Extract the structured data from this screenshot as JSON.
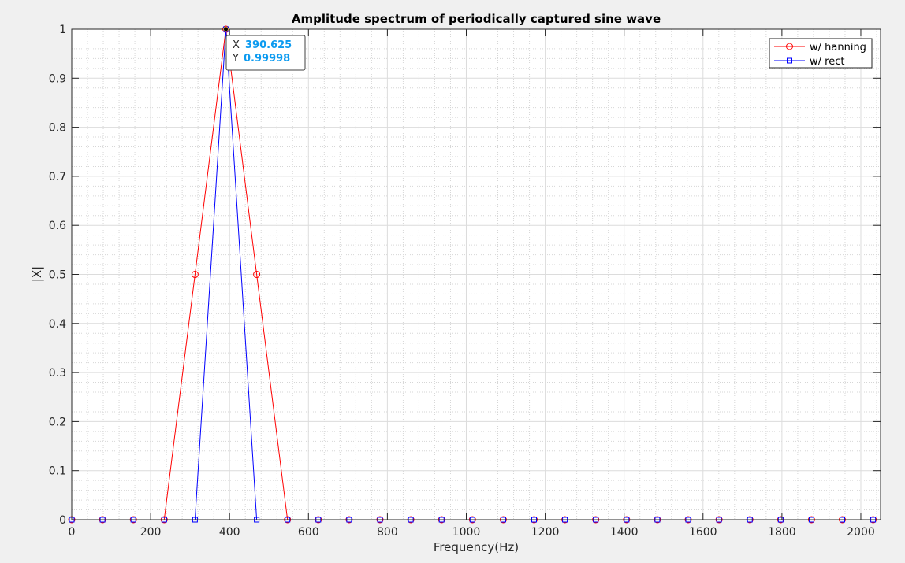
{
  "chart_data": {
    "type": "line",
    "title": "Amplitude spectrum of periodically captured sine wave",
    "xlabel": "Frequency(Hz)",
    "ylabel": "|X|",
    "xlim": [
      0,
      2050
    ],
    "ylim": [
      0,
      1
    ],
    "xticks": [
      0,
      200,
      400,
      600,
      800,
      1000,
      1200,
      1400,
      1600,
      1800,
      2000
    ],
    "yticks": [
      0,
      0.1,
      0.2,
      0.3,
      0.4,
      0.5,
      0.6,
      0.7,
      0.8,
      0.9,
      1
    ],
    "xtick_labels": [
      "0",
      "200",
      "400",
      "600",
      "800",
      "1000",
      "1200",
      "1400",
      "1600",
      "1800",
      "2000"
    ],
    "ytick_labels": [
      "0",
      "0.1",
      "0.2",
      "0.3",
      "0.4",
      "0.5",
      "0.6",
      "0.7",
      "0.8",
      "0.9",
      "1"
    ],
    "grid": true,
    "minor_grid": true,
    "legend_position": "top-right",
    "x": [
      0,
      78.125,
      156.25,
      234.375,
      312.5,
      390.625,
      468.75,
      546.875,
      625,
      703.125,
      781.25,
      859.375,
      937.5,
      1015.625,
      1093.75,
      1171.875,
      1250,
      1328.125,
      1406.25,
      1484.375,
      1562.5,
      1640.625,
      1718.75,
      1796.875,
      1875,
      1953.125,
      2031.25
    ],
    "series": [
      {
        "name": "w/ hanning",
        "color": "#ff0000",
        "marker": "circle",
        "values": [
          0,
          0,
          0,
          0,
          0.49999,
          0.99998,
          0.49999,
          0,
          0,
          0,
          0,
          0,
          0,
          0,
          0,
          0,
          0,
          0,
          0,
          0,
          0,
          0,
          0,
          0,
          0,
          0,
          0
        ]
      },
      {
        "name": "w/ rect",
        "color": "#0000ff",
        "marker": "square",
        "values": [
          0,
          0,
          0,
          0,
          0,
          0.99998,
          0,
          0,
          0,
          0,
          0,
          0,
          0,
          0,
          0,
          0,
          0,
          0,
          0,
          0,
          0,
          0,
          0,
          0,
          0,
          0,
          0
        ]
      }
    ],
    "datatip": {
      "x_label": "X",
      "y_label": "Y",
      "x_value": "390.625",
      "y_value": "0.99998",
      "point": [
        390.625,
        0.99998
      ],
      "value_color": "#0d9bf0"
    }
  }
}
